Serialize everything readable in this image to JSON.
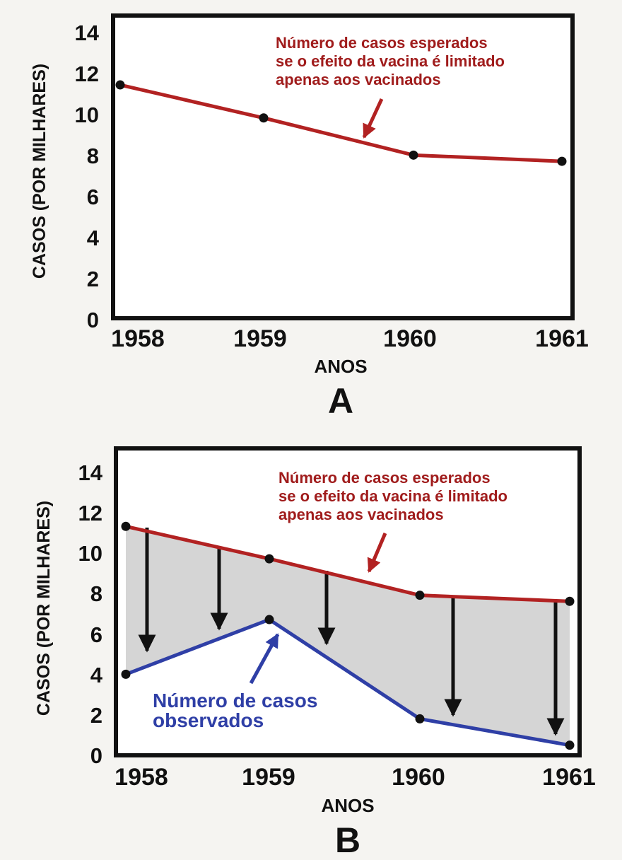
{
  "chart_data": [
    {
      "type": "line",
      "panel_label": "A",
      "xlabel": "ANOS",
      "ylabel": "CASOS (POR MILHARES)",
      "x": [
        "1958",
        "1959",
        "1960",
        "1961"
      ],
      "ylim": [
        0,
        14
      ],
      "yticks": [
        "0",
        "2",
        "4",
        "6",
        "8",
        "10",
        "12",
        "14"
      ],
      "grid": false,
      "series": [
        {
          "values": [
            11.3,
            9.7,
            7.9,
            7.6
          ],
          "color": "#b22222"
        }
      ],
      "annotations": [
        {
          "lines": [
            "Número de casos esperados",
            "se o efeito da vacina é limitado",
            "apenas aos vacinados"
          ],
          "color": "#a01c1c"
        }
      ]
    },
    {
      "type": "line",
      "panel_label": "B",
      "xlabel": "ANOS",
      "ylabel": "CASOS (POR MILHARES)",
      "x": [
        "1958",
        "1959",
        "1960",
        "1961"
      ],
      "ylim": [
        0,
        14
      ],
      "yticks": [
        "0",
        "2",
        "4",
        "6",
        "8",
        "10",
        "12",
        "14"
      ],
      "grid": false,
      "shaded_gap": true,
      "series": [
        {
          "values": [
            11.3,
            9.7,
            7.9,
            7.6
          ],
          "color": "#b22222"
        },
        {
          "values": [
            4.0,
            6.7,
            1.8,
            0.5
          ],
          "color": "#2f3fa6"
        }
      ],
      "annotations": [
        {
          "lines": [
            "Número de casos esperados",
            "se o efeito da vacina é limitado",
            "apenas aos vacinados"
          ],
          "color": "#a01c1c"
        },
        {
          "lines": [
            "Número de casos",
            "observados"
          ],
          "color": "#2f3fa6"
        }
      ]
    }
  ]
}
